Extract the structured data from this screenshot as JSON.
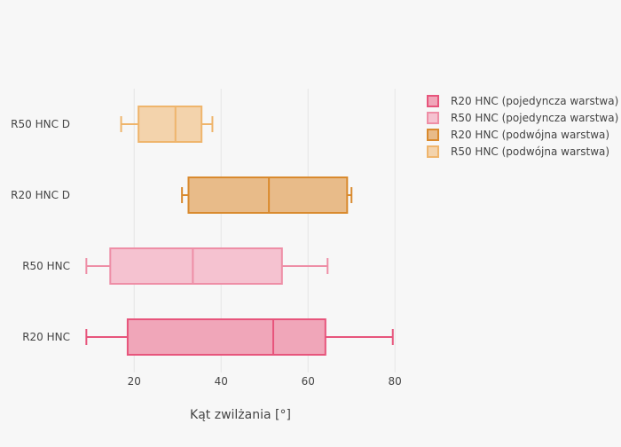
{
  "chart_data": {
    "type": "box",
    "orientation": "horizontal",
    "title": "",
    "xlabel": "Kąt zwilżania [°]",
    "ylabel": "",
    "xlim": [
      7.5,
      82
    ],
    "x_ticks": [
      20,
      40,
      60,
      80
    ],
    "grid": true,
    "legend_position": "top-right",
    "categories": [
      "R20 HNC",
      "R50 HNC",
      "R20 HNC D",
      "R50 HNC D"
    ],
    "series": [
      {
        "name": "R20 HNC (pojedyncza warstwa)",
        "category": "R20 HNC",
        "color": "#e7557c",
        "fill": "#f0a6b9",
        "min": 9,
        "q1": 18.5,
        "median": 52,
        "q3": 64,
        "max": 79.5
      },
      {
        "name": "R50 HNC (pojedyncza warstwa)",
        "category": "R50 HNC",
        "color": "#ee8ea6",
        "fill": "#f5c2d0",
        "min": 9,
        "q1": 14.5,
        "median": 33.5,
        "q3": 54,
        "max": 64.5
      },
      {
        "name": "R20 HNC (podwójna warstwa)",
        "category": "R20 HNC D",
        "color": "#d98a2e",
        "fill": "#e8bb89",
        "min": 31,
        "q1": 32.5,
        "median": 51,
        "q3": 69,
        "max": 70
      },
      {
        "name": "R50 HNC (podwójna warstwa)",
        "category": "R50 HNC D",
        "color": "#efb56c",
        "fill": "#f3d3ac",
        "min": 17,
        "q1": 21,
        "median": 29.5,
        "q3": 35.5,
        "max": 38
      }
    ]
  }
}
